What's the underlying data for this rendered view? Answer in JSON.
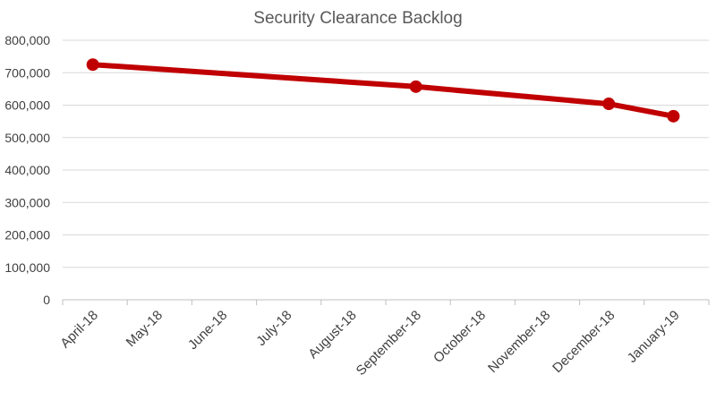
{
  "chart_data": {
    "type": "line",
    "title": "Security Clearance Backlog",
    "xlabel": "",
    "ylabel": "",
    "categories": [
      "April-18",
      "May-18",
      "June-18",
      "July-18",
      "August-18",
      "September-18",
      "October-18",
      "November-18",
      "December-18",
      "January-19"
    ],
    "ylim": [
      0,
      800000
    ],
    "yticks": [
      0,
      100000,
      200000,
      300000,
      400000,
      500000,
      600000,
      700000,
      800000
    ],
    "ytick_labels": [
      "0",
      "100,000",
      "200,000",
      "300,000",
      "400,000",
      "500,000",
      "600,000",
      "700,000",
      "800,000"
    ],
    "grid": true,
    "legend": "none",
    "series": [
      {
        "color": "#c00000",
        "points": [
          {
            "x": "2018-04-15",
            "y": 725000
          },
          {
            "x": "2018-09-15",
            "y": 657000
          },
          {
            "x": "2018-12-15",
            "y": 604000
          },
          {
            "x": "2019-01-15",
            "y": 566000
          }
        ]
      }
    ]
  }
}
